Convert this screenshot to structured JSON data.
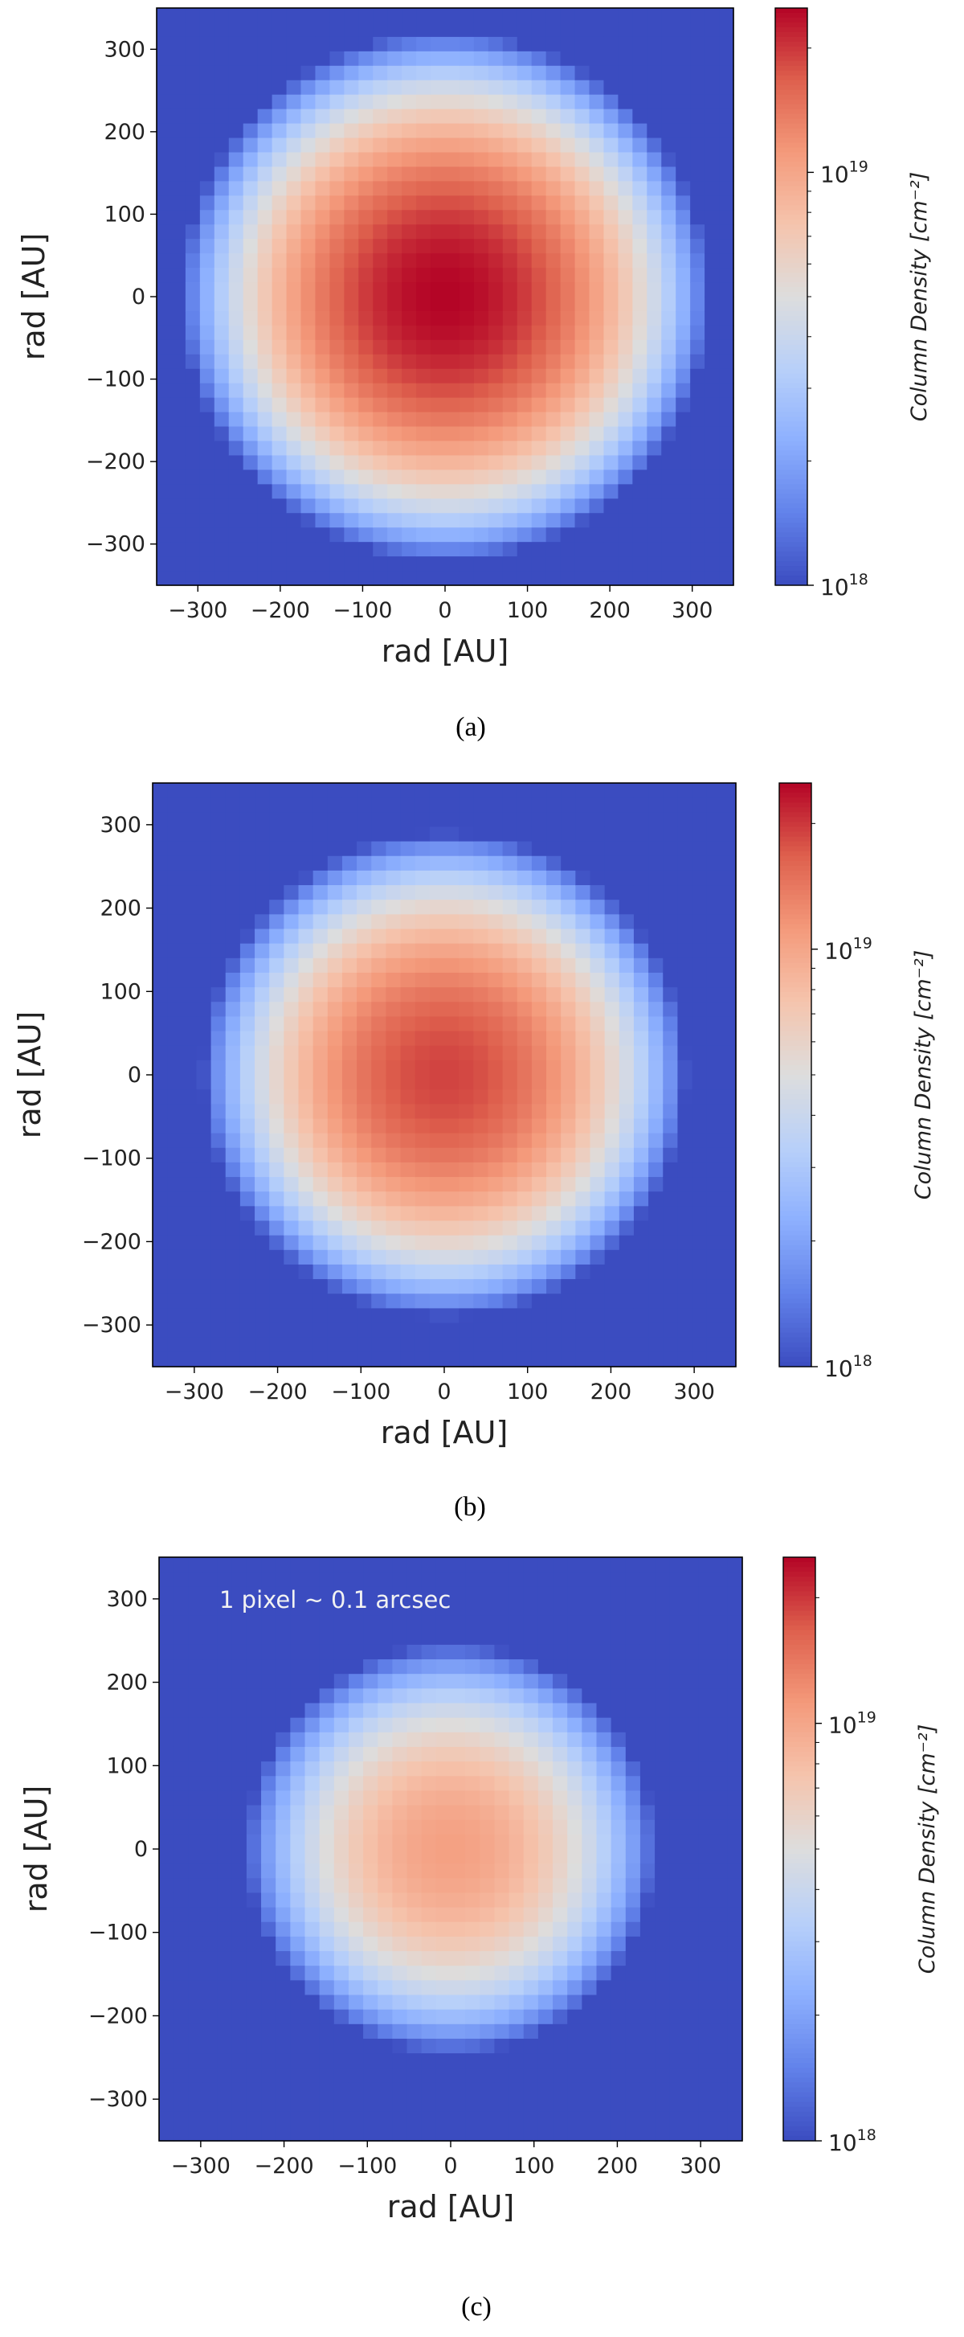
{
  "chart_data": [
    {
      "type": "heatmap",
      "caption": "(a)",
      "xlabel": "rad [AU]",
      "ylabel": "rad [AU]",
      "xlim": [
        -350,
        350
      ],
      "ylim": [
        -350,
        350
      ],
      "xticks": [
        -300,
        -200,
        -100,
        0,
        100,
        200,
        300
      ],
      "yticks": [
        300,
        200,
        100,
        0,
        -100,
        -200,
        -300
      ],
      "colorbar": {
        "label": "Column Density [cm⁻²]",
        "scale": "log",
        "min": 1e+18,
        "max": 2.5e+19,
        "ticks": [
          {
            "base": "10",
            "exp": "19",
            "value": 1e+19
          },
          {
            "base": "10",
            "exp": "18",
            "value": 1e+18
          }
        ]
      },
      "source": {
        "center_au": [
          0,
          0
        ],
        "peak": 2.5e+19,
        "outer_radius_au": 320,
        "profile": "radially decreasing, log-scaled"
      },
      "pixel_au": 17.5,
      "annotation": "",
      "grid": false,
      "colormap": "coolwarm"
    },
    {
      "type": "heatmap",
      "caption": "(b)",
      "xlabel": "rad [AU]",
      "ylabel": "rad [AU]",
      "xlim": [
        -350,
        350
      ],
      "ylim": [
        -350,
        350
      ],
      "xticks": [
        -300,
        -200,
        -100,
        0,
        100,
        200,
        300
      ],
      "yticks": [
        300,
        200,
        100,
        0,
        -100,
        -200,
        -300
      ],
      "colorbar": {
        "label": "Column Density [cm⁻²]",
        "scale": "log",
        "min": 1e+18,
        "max": 2.5e+19,
        "ticks": [
          {
            "base": "10",
            "exp": "19",
            "value": 1e+19
          },
          {
            "base": "10",
            "exp": "18",
            "value": 1e+18
          }
        ]
      },
      "source": {
        "center_au": [
          0,
          0
        ],
        "peak": 1.9e+19,
        "outer_radius_au": 290,
        "profile": "radially decreasing, log-scaled"
      },
      "pixel_au": 17.5,
      "annotation": "",
      "grid": false,
      "colormap": "coolwarm"
    },
    {
      "type": "heatmap",
      "caption": "(c)",
      "xlabel": "rad [AU]",
      "ylabel": "rad [AU]",
      "xlim": [
        -350,
        350
      ],
      "ylim": [
        -350,
        350
      ],
      "xticks": [
        -300,
        -200,
        -100,
        0,
        100,
        200,
        300
      ],
      "yticks": [
        300,
        200,
        100,
        0,
        -100,
        -200,
        -300
      ],
      "colorbar": {
        "label": "Column Density [cm⁻²]",
        "scale": "log",
        "min": 1e+18,
        "max": 2.5e+19,
        "ticks": [
          {
            "base": "10",
            "exp": "19",
            "value": 1e+19
          },
          {
            "base": "10",
            "exp": "18",
            "value": 1e+18
          }
        ]
      },
      "source": {
        "center_au": [
          0,
          0
        ],
        "peak": 1.05e+19,
        "outer_radius_au": 245,
        "profile": "radially decreasing, log-scaled"
      },
      "pixel_au": 17.5,
      "annotation": "1 pixel ~ 0.1 arcsec",
      "grid": false,
      "colormap": "coolwarm"
    }
  ]
}
